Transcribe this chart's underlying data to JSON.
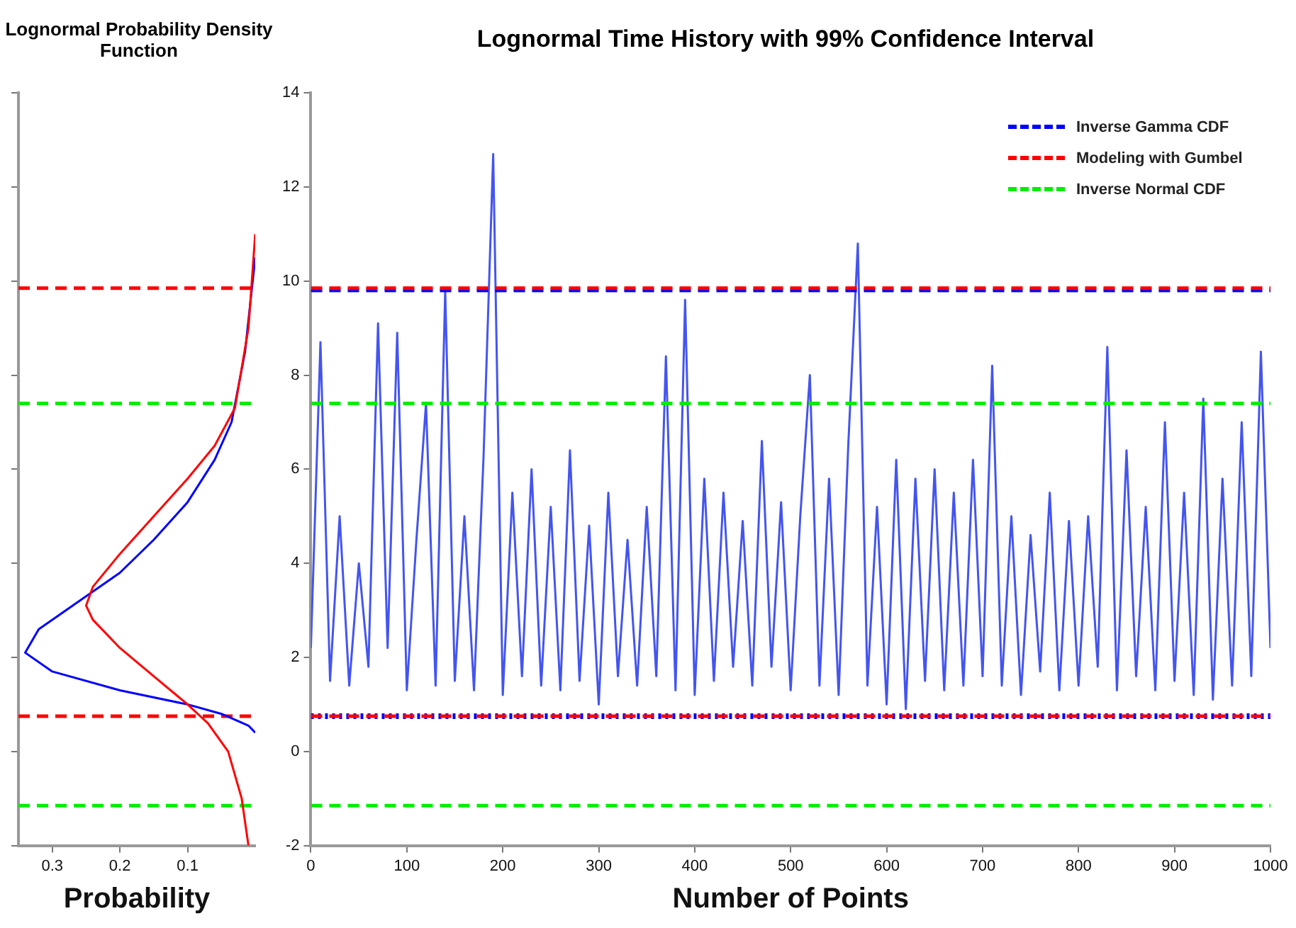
{
  "chart_data": [
    {
      "type": "line",
      "title": "Lognormal Probability Density Function",
      "xlabel": "Probability",
      "xlim": [
        0.35,
        0
      ],
      "xticks": [
        0.3,
        0.2,
        0.1
      ],
      "ylim": [
        -2,
        14
      ],
      "yticks": [
        -2,
        0,
        2,
        4,
        6,
        8,
        10,
        12,
        14
      ],
      "tick_labels": "x",
      "grid": false,
      "marker": "none",
      "series": [
        {
          "color": "#0000ff",
          "x": [
            0,
            0.01,
            0.05,
            0.1,
            0.2,
            0.3,
            0.34,
            0.32,
            0.27,
            0.2,
            0.15,
            0.1,
            0.06,
            0.035,
            0.015,
            0
          ],
          "values": [
            0.4,
            0.55,
            0.8,
            1.0,
            1.3,
            1.7,
            2.1,
            2.6,
            3.1,
            3.8,
            4.5,
            5.3,
            6.2,
            7.0,
            8.5,
            10.5
          ]
        },
        {
          "color": "#ff0000",
          "x": [
            0.01,
            0.02,
            0.04,
            0.07,
            0.1,
            0.15,
            0.2,
            0.24,
            0.25,
            0.24,
            0.2,
            0.15,
            0.1,
            0.06,
            0.03,
            0.01,
            0
          ],
          "values": [
            -2,
            -1,
            0,
            0.6,
            1.0,
            1.6,
            2.2,
            2.8,
            3.1,
            3.5,
            4.2,
            5.0,
            5.8,
            6.5,
            7.3,
            9.0,
            11.0
          ]
        }
      ],
      "ref_lines": [
        {
          "axis": "y",
          "value": 9.85,
          "color": "#ff0000",
          "line_style": "dashed"
        },
        {
          "axis": "y",
          "value": 0.75,
          "color": "#ff0000",
          "line_style": "dashed"
        },
        {
          "axis": "y",
          "value": 7.4,
          "color": "#00ee00",
          "line_style": "dashed"
        },
        {
          "axis": "y",
          "value": -1.15,
          "color": "#00ee00",
          "line_style": "dashed"
        }
      ]
    },
    {
      "type": "line",
      "title": "Lognormal Time History with 99% Confidence Interval",
      "xlabel": "Number of Points",
      "xlim": [
        0,
        1000
      ],
      "xticks": [
        0,
        100,
        200,
        300,
        400,
        500,
        600,
        700,
        800,
        900,
        1000
      ],
      "ylim": [
        -2,
        14
      ],
      "yticks": [
        -2,
        0,
        2,
        4,
        6,
        8,
        10,
        12,
        14
      ],
      "grid": false,
      "marker": "none",
      "legend": "top right",
      "series": [
        {
          "color": "#4455ee",
          "x": [
            0,
            10,
            20,
            30,
            40,
            50,
            60,
            70,
            80,
            90,
            100,
            110,
            120,
            130,
            140,
            150,
            160,
            170,
            180,
            190,
            200,
            210,
            220,
            230,
            240,
            250,
            260,
            270,
            280,
            290,
            300,
            310,
            320,
            330,
            340,
            350,
            360,
            370,
            380,
            390,
            400,
            410,
            420,
            430,
            440,
            450,
            460,
            470,
            480,
            490,
            500,
            510,
            520,
            530,
            540,
            550,
            560,
            570,
            580,
            590,
            600,
            610,
            620,
            630,
            640,
            650,
            660,
            670,
            680,
            690,
            700,
            710,
            720,
            730,
            740,
            750,
            760,
            770,
            780,
            790,
            800,
            810,
            820,
            830,
            840,
            850,
            860,
            870,
            880,
            890,
            900,
            910,
            920,
            930,
            940,
            950,
            960,
            970,
            980,
            990,
            1000
          ],
          "values": [
            2.2,
            8.7,
            1.5,
            5.0,
            1.4,
            4.0,
            1.8,
            9.1,
            2.2,
            8.9,
            1.3,
            4.5,
            7.4,
            1.4,
            9.8,
            1.5,
            5.0,
            1.3,
            6.3,
            12.7,
            1.2,
            5.5,
            1.6,
            6.0,
            1.4,
            5.2,
            1.3,
            6.4,
            1.5,
            4.8,
            1.0,
            5.5,
            1.6,
            4.5,
            1.4,
            5.2,
            1.6,
            8.4,
            1.3,
            9.6,
            1.2,
            5.8,
            1.5,
            5.5,
            1.8,
            4.9,
            1.4,
            6.6,
            1.8,
            5.3,
            1.3,
            5.0,
            8.0,
            1.4,
            5.8,
            1.2,
            6.5,
            10.8,
            1.4,
            5.2,
            1.0,
            6.2,
            0.9,
            5.8,
            1.5,
            6.0,
            1.3,
            5.5,
            1.4,
            6.2,
            1.6,
            8.2,
            1.4,
            5.0,
            1.2,
            4.6,
            1.7,
            5.5,
            1.3,
            4.9,
            1.4,
            5.0,
            1.8,
            8.6,
            1.3,
            6.4,
            1.6,
            5.2,
            1.3,
            7.0,
            1.5,
            5.5,
            1.2,
            7.5,
            1.1,
            5.8,
            1.4,
            7.0,
            1.6,
            8.5,
            2.2
          ]
        },
        {
          "name": "Inverse Gamma CDF",
          "color": "#0000ff",
          "line_style": "dashed",
          "x": [
            0,
            1000
          ],
          "values": [
            9.8,
            9.8
          ]
        },
        {
          "color": "#0000ff",
          "line_style": "dotted",
          "x": [
            0,
            1000
          ],
          "values": [
            0.75,
            0.75
          ]
        },
        {
          "name": "Modeling with Gumbel",
          "color": "#ff0000",
          "line_style": "dashed",
          "x": [
            0,
            1000
          ],
          "values": [
            9.85,
            9.85
          ]
        },
        {
          "color": "#ff0000",
          "line_style": "dashed",
          "x": [
            0,
            1000
          ],
          "values": [
            0.75,
            0.75
          ]
        },
        {
          "name": "Inverse Normal CDF",
          "color": "#00ee00",
          "line_style": "dashed",
          "x": [
            0,
            1000
          ],
          "values": [
            7.4,
            7.4
          ]
        },
        {
          "color": "#00ee00",
          "line_style": "dashed",
          "x": [
            0,
            1000
          ],
          "values": [
            -1.15,
            -1.15
          ]
        }
      ]
    }
  ]
}
